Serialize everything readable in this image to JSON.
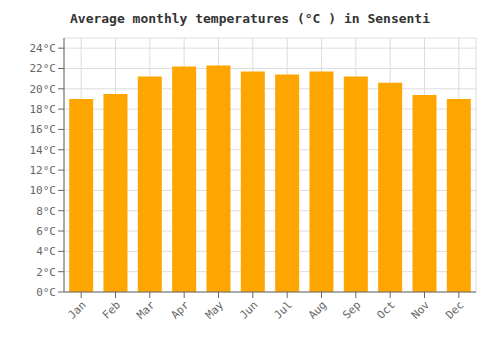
{
  "chart_data": {
    "type": "bar",
    "title": "Average monthly temperatures (°C ) in Sensenti",
    "categories": [
      "Jan",
      "Feb",
      "Mar",
      "Apr",
      "May",
      "Jun",
      "Jul",
      "Aug",
      "Sep",
      "Oct",
      "Nov",
      "Dec"
    ],
    "values": [
      19.0,
      19.5,
      21.2,
      22.2,
      22.3,
      21.7,
      21.4,
      21.7,
      21.2,
      20.6,
      19.4,
      19.0
    ],
    "color": "#FFA500",
    "ylim": [
      0,
      25
    ],
    "yticks": [
      {
        "value": 0,
        "label": "0°C"
      },
      {
        "value": 2,
        "label": "2°C"
      },
      {
        "value": 4,
        "label": "4°C"
      },
      {
        "value": 6,
        "label": "6°C"
      },
      {
        "value": 8,
        "label": "8°C"
      },
      {
        "value": 10,
        "label": "10°C"
      },
      {
        "value": 12,
        "label": "12°C"
      },
      {
        "value": 14,
        "label": "14°C"
      },
      {
        "value": 16,
        "label": "16°C"
      },
      {
        "value": 18,
        "label": "18°C"
      },
      {
        "value": 20,
        "label": "20°C"
      },
      {
        "value": 22,
        "label": "22°C"
      },
      {
        "value": 24,
        "label": "24°C"
      }
    ],
    "grid": true
  }
}
